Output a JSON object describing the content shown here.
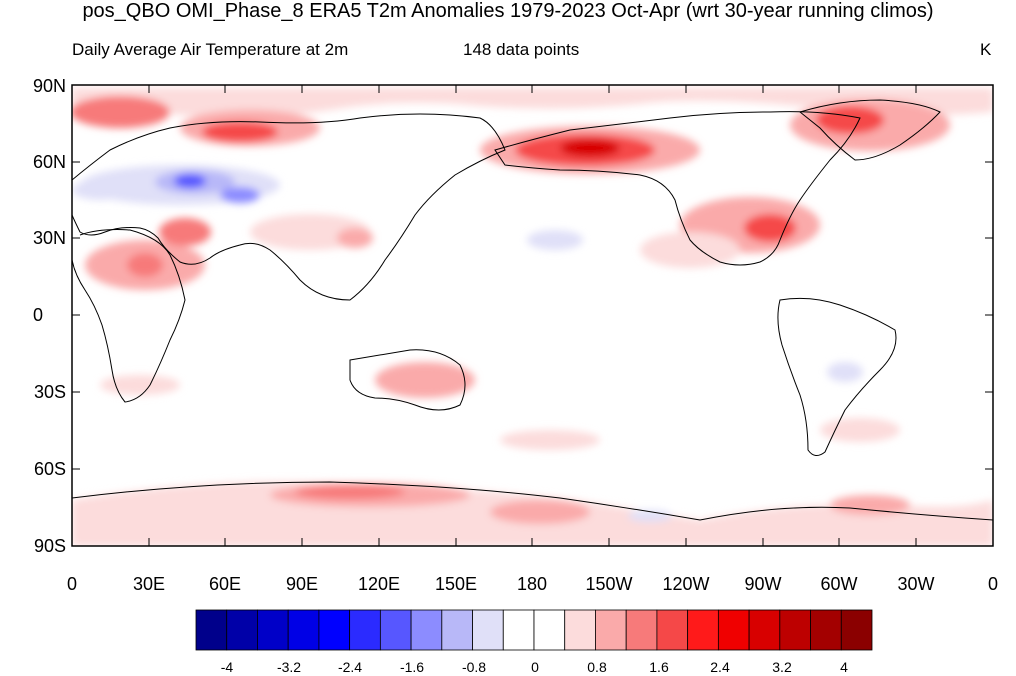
{
  "title": "pos_QBO OMI_Phase_8 ERA5 T2m Anomalies 1979-2023 Oct-Apr (wrt 30-year running climos)",
  "subtitle_left": "Daily Average Air Temperature at 2m",
  "subtitle_center": "148 data points",
  "units": "K",
  "lat_labels": [
    "90N",
    "60N",
    "30N",
    "0",
    "30S",
    "60S",
    "90S"
  ],
  "lon_labels": [
    "0",
    "30E",
    "60E",
    "90E",
    "120E",
    "150E",
    "180",
    "150W",
    "120W",
    "90W",
    "60W",
    "30W",
    "0"
  ],
  "colorbar": {
    "colors": [
      "#00008b",
      "#0000a8",
      "#0000c8",
      "#0000e6",
      "#0000ff",
      "#2b2bff",
      "#5757ff",
      "#8c8cff",
      "#b8b8f8",
      "#e0e0f8",
      "#ffffff",
      "#ffffff",
      "#fcdcdc",
      "#faaaaa",
      "#f77a7a",
      "#f54848",
      "#ff1a1a",
      "#f00000",
      "#d80000",
      "#bd0000",
      "#a30000",
      "#8b0000"
    ],
    "tick_labels": [
      "-4",
      "-3.2",
      "-2.4",
      "-1.6",
      "-0.8",
      "0",
      "0.8",
      "1.6",
      "2.4",
      "3.2",
      "4"
    ]
  }
}
